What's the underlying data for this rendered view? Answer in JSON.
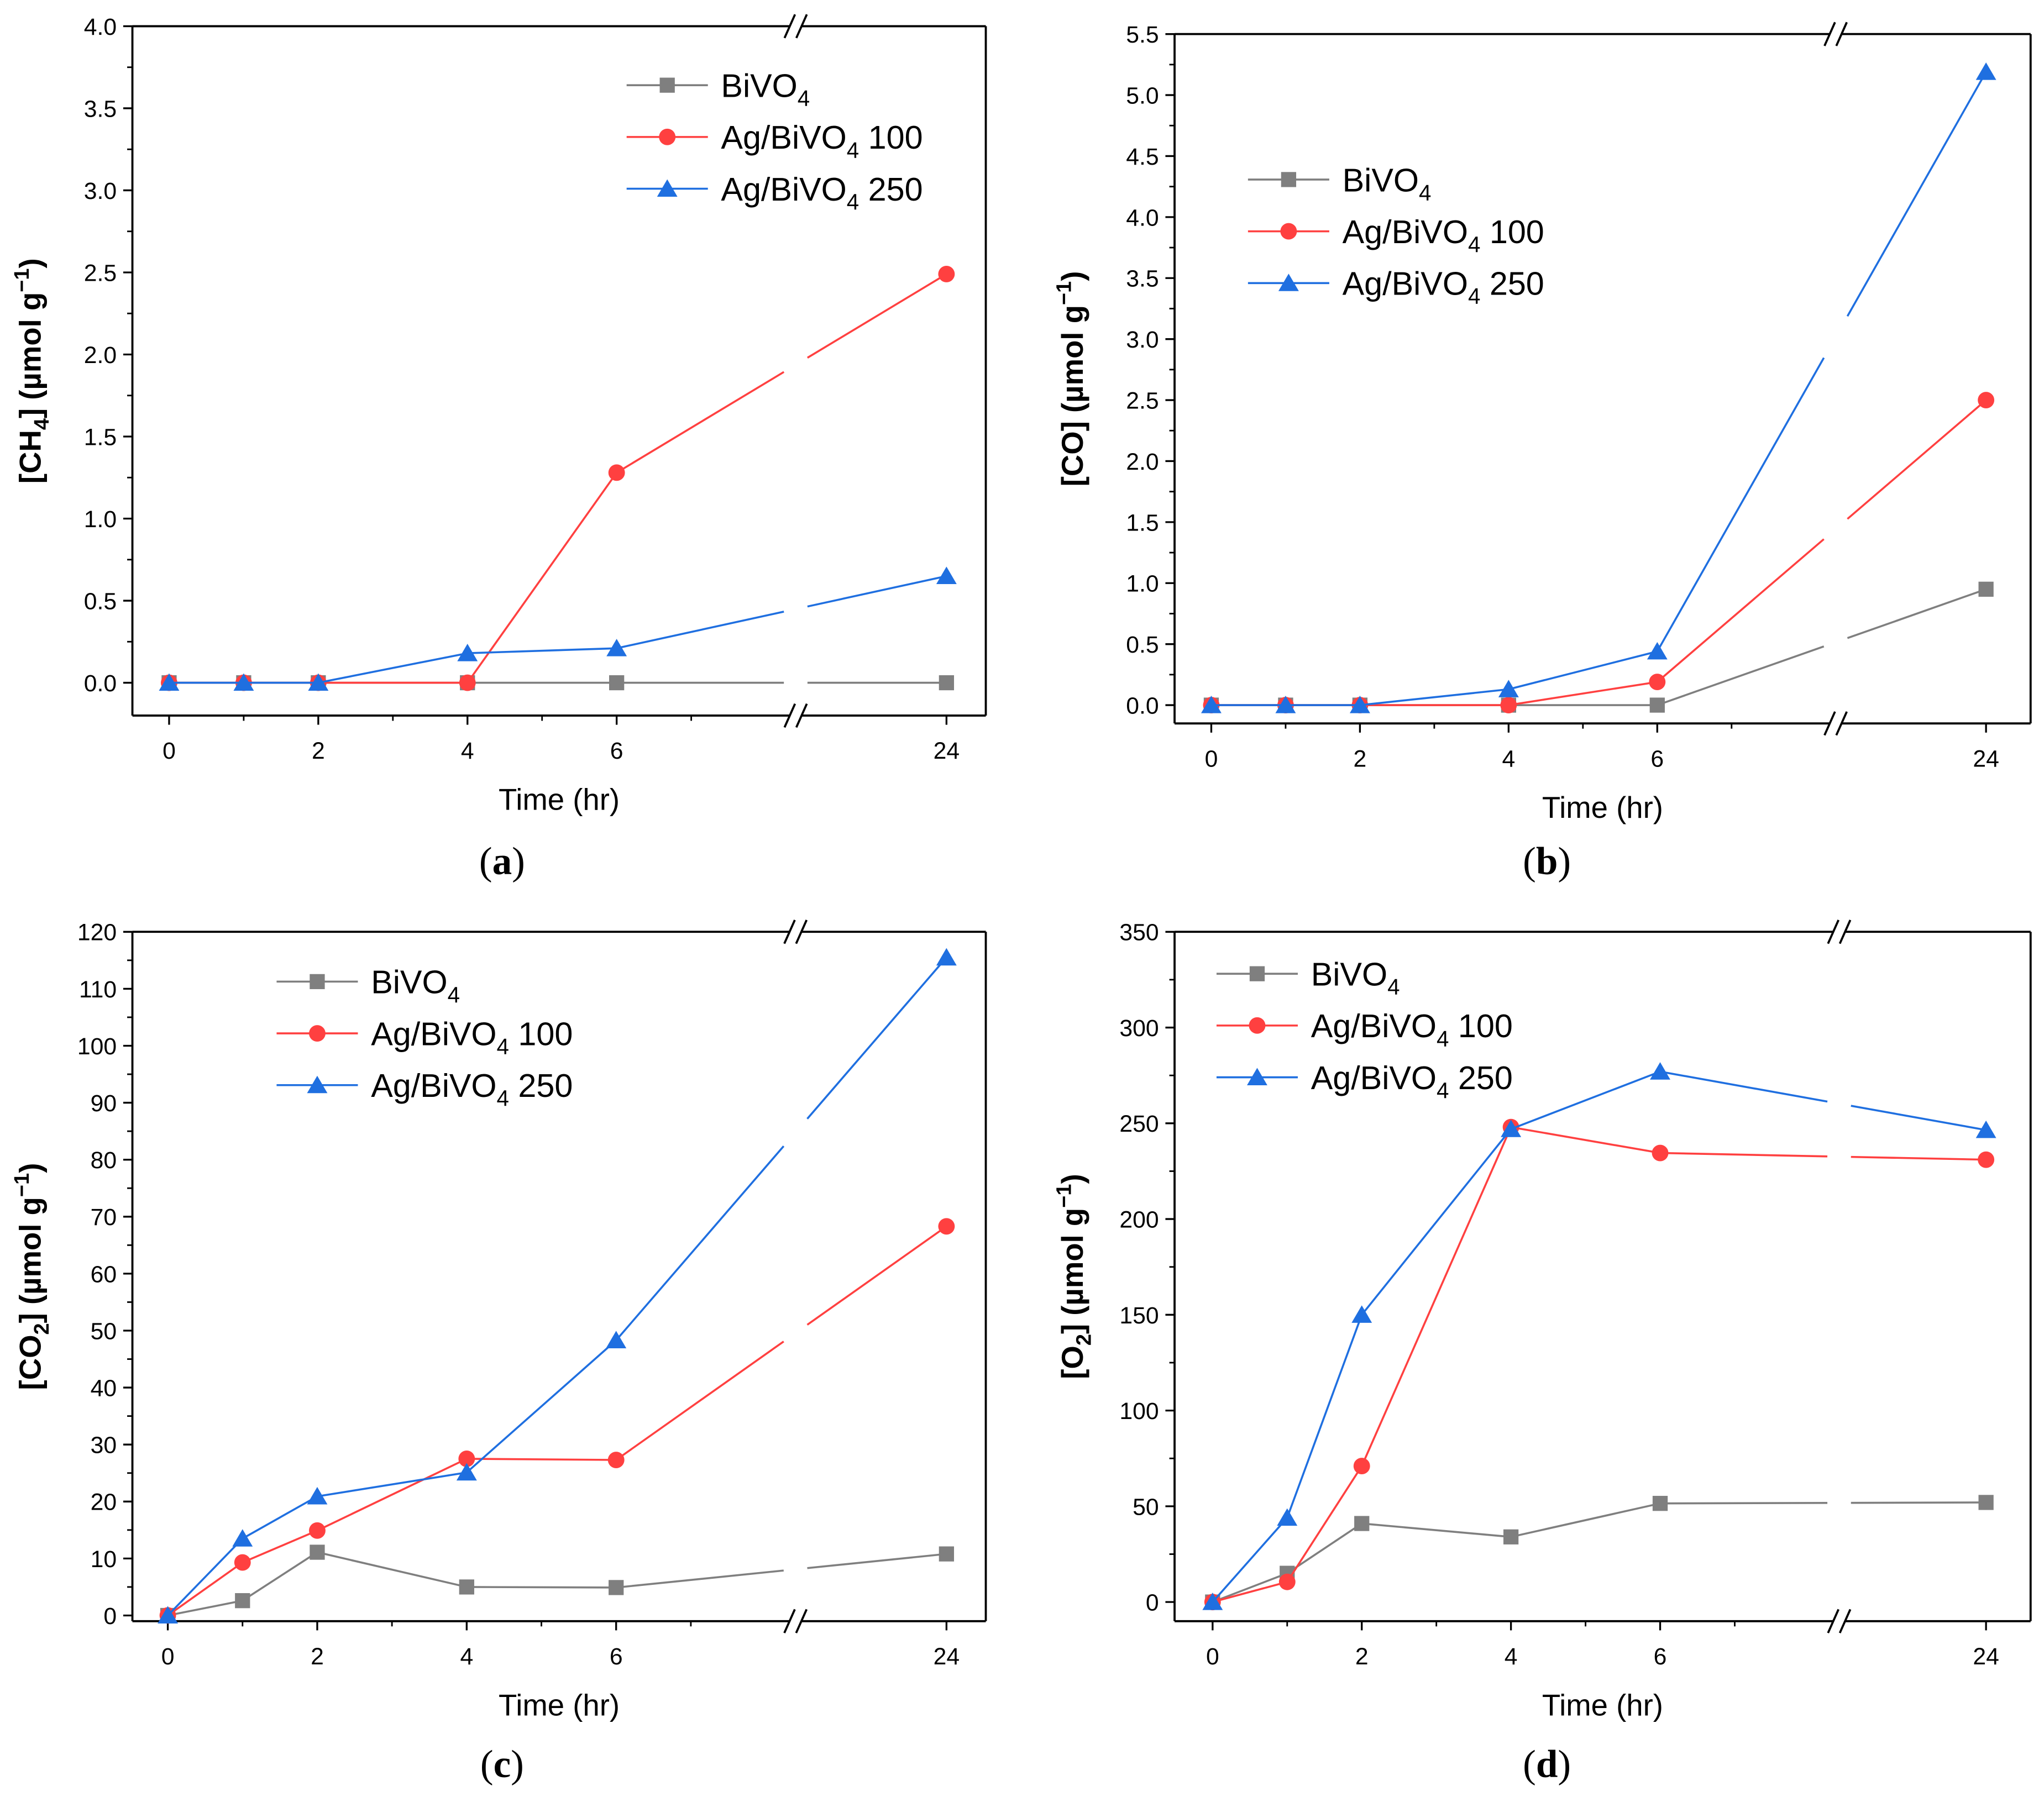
{
  "figure": {
    "panels": [
      {
        "id": "a",
        "caption_letter": "a"
      },
      {
        "id": "b",
        "caption_letter": "b"
      },
      {
        "id": "c",
        "caption_letter": "c"
      },
      {
        "id": "d",
        "caption_letter": "d"
      }
    ]
  },
  "chart_data": [
    {
      "type": "line",
      "panel": "a",
      "caption": "(a)",
      "xlabel": "Time (hr)",
      "ylabel": {
        "prefix": "[CH",
        "sub": "4",
        "suffix": "] (µmol g",
        "sup": "−1",
        "close": ")"
      },
      "x": [
        0,
        1,
        2,
        4,
        6,
        24
      ],
      "xticks": [
        "0",
        "2",
        "4",
        "6",
        "24"
      ],
      "x_axis_break": "between 6 and 24",
      "ylim": [
        -0.2,
        4.0
      ],
      "yticks": [
        "0.0",
        "0.5",
        "1.0",
        "1.5",
        "2.0",
        "2.5",
        "3.0",
        "3.5",
        "4.0"
      ],
      "legend_position": "top-right",
      "series": [
        {
          "name": "BiVO",
          "name_sub": "4",
          "name_suffix": "",
          "color": "#7f7f7f",
          "marker": "square",
          "values": [
            0,
            0,
            0,
            0,
            0,
            0
          ]
        },
        {
          "name": "Ag/BiVO",
          "name_sub": "4",
          "name_suffix": " 100",
          "color": "#ff4040",
          "marker": "circle",
          "values": [
            0,
            0,
            0,
            0,
            1.28,
            2.49
          ]
        },
        {
          "name": "Ag/BiVO",
          "name_sub": "4",
          "name_suffix": " 250",
          "color": "#1f6fe0",
          "marker": "triangle",
          "values": [
            0,
            0,
            0,
            0.18,
            0.21,
            0.65
          ]
        }
      ]
    },
    {
      "type": "line",
      "panel": "b",
      "caption": "(b)",
      "xlabel": "Time (hr)",
      "ylabel": {
        "prefix": "[CO",
        "sub": "",
        "suffix": "] (µmol g",
        "sup": "−1",
        "close": ")"
      },
      "x": [
        0,
        1,
        2,
        4,
        6,
        24
      ],
      "xticks": [
        "0",
        "2",
        "4",
        "6",
        "24"
      ],
      "x_axis_break": "between 6 and 24",
      "ylim": [
        -0.15,
        5.5
      ],
      "yticks": [
        "0.0",
        "0.5",
        "1.0",
        "1.5",
        "2.0",
        "2.5",
        "3.0",
        "3.5",
        "4.0",
        "4.5",
        "5.0",
        "5.5"
      ],
      "legend_position": "top-left",
      "series": [
        {
          "name": "BiVO",
          "name_sub": "4",
          "name_suffix": "",
          "color": "#7f7f7f",
          "marker": "square",
          "values": [
            0,
            0,
            0,
            0,
            0,
            0.95
          ]
        },
        {
          "name": "Ag/BiVO",
          "name_sub": "4",
          "name_suffix": " 100",
          "color": "#ff4040",
          "marker": "circle",
          "values": [
            0,
            0,
            0,
            0,
            0.19,
            2.5
          ]
        },
        {
          "name": "Ag/BiVO",
          "name_sub": "4",
          "name_suffix": " 250",
          "color": "#1f6fe0",
          "marker": "triangle",
          "values": [
            0,
            0,
            0,
            0.13,
            0.44,
            5.19
          ]
        }
      ]
    },
    {
      "type": "line",
      "panel": "c",
      "caption": "(c)",
      "xlabel": "Time (hr)",
      "ylabel": {
        "prefix": "[CO",
        "sub": "2",
        "suffix": "] (µmol g",
        "sup": "−1",
        "close": ")"
      },
      "x": [
        0,
        1,
        2,
        4,
        6,
        24
      ],
      "xticks": [
        "0",
        "2",
        "4",
        "6",
        "24"
      ],
      "x_axis_break": "between 6 and 24",
      "ylim": [
        -1,
        120
      ],
      "yticks": [
        "0",
        "10",
        "20",
        "30",
        "40",
        "50",
        "60",
        "70",
        "80",
        "90",
        "100",
        "110",
        "120"
      ],
      "legend_position": "top-left",
      "series": [
        {
          "name": "BiVO",
          "name_sub": "4",
          "name_suffix": "",
          "color": "#7f7f7f",
          "marker": "square",
          "values": [
            0,
            2.6,
            11.1,
            5.0,
            4.9,
            10.8
          ]
        },
        {
          "name": "Ag/BiVO",
          "name_sub": "4",
          "name_suffix": " 100",
          "color": "#ff4040",
          "marker": "circle",
          "values": [
            0,
            9.3,
            14.9,
            27.5,
            27.3,
            68.3
          ]
        },
        {
          "name": "Ag/BiVO",
          "name_sub": "4",
          "name_suffix": " 250",
          "color": "#1f6fe0",
          "marker": "triangle",
          "values": [
            0,
            13.5,
            20.9,
            25.1,
            48.3,
            115.5
          ]
        }
      ]
    },
    {
      "type": "line",
      "panel": "d",
      "caption": "(d)",
      "xlabel": "Time (hr)",
      "ylabel": {
        "prefix": "[O",
        "sub": "2",
        "suffix": "] (µmol g",
        "sup": "−1",
        "close": ")"
      },
      "x": [
        0,
        1,
        2,
        4,
        6,
        24
      ],
      "xticks": [
        "0",
        "2",
        "4",
        "6",
        "24"
      ],
      "x_axis_break": "between 6 and 24",
      "ylim": [
        -10,
        350
      ],
      "yticks": [
        "0",
        "50",
        "100",
        "150",
        "200",
        "250",
        "300",
        "350"
      ],
      "legend_position": "top-left",
      "series": [
        {
          "name": "BiVO",
          "name_sub": "4",
          "name_suffix": "",
          "color": "#7f7f7f",
          "marker": "square",
          "values": [
            0,
            15,
            41,
            34,
            51.5,
            52
          ]
        },
        {
          "name": "Ag/BiVO",
          "name_sub": "4",
          "name_suffix": " 100",
          "color": "#ff4040",
          "marker": "circle",
          "values": [
            0,
            10.5,
            71,
            248,
            234.5,
            231
          ]
        },
        {
          "name": "Ag/BiVO",
          "name_sub": "4",
          "name_suffix": " 250",
          "color": "#1f6fe0",
          "marker": "triangle",
          "values": [
            0,
            44,
            150,
            247,
            277,
            246.5
          ]
        }
      ]
    }
  ]
}
